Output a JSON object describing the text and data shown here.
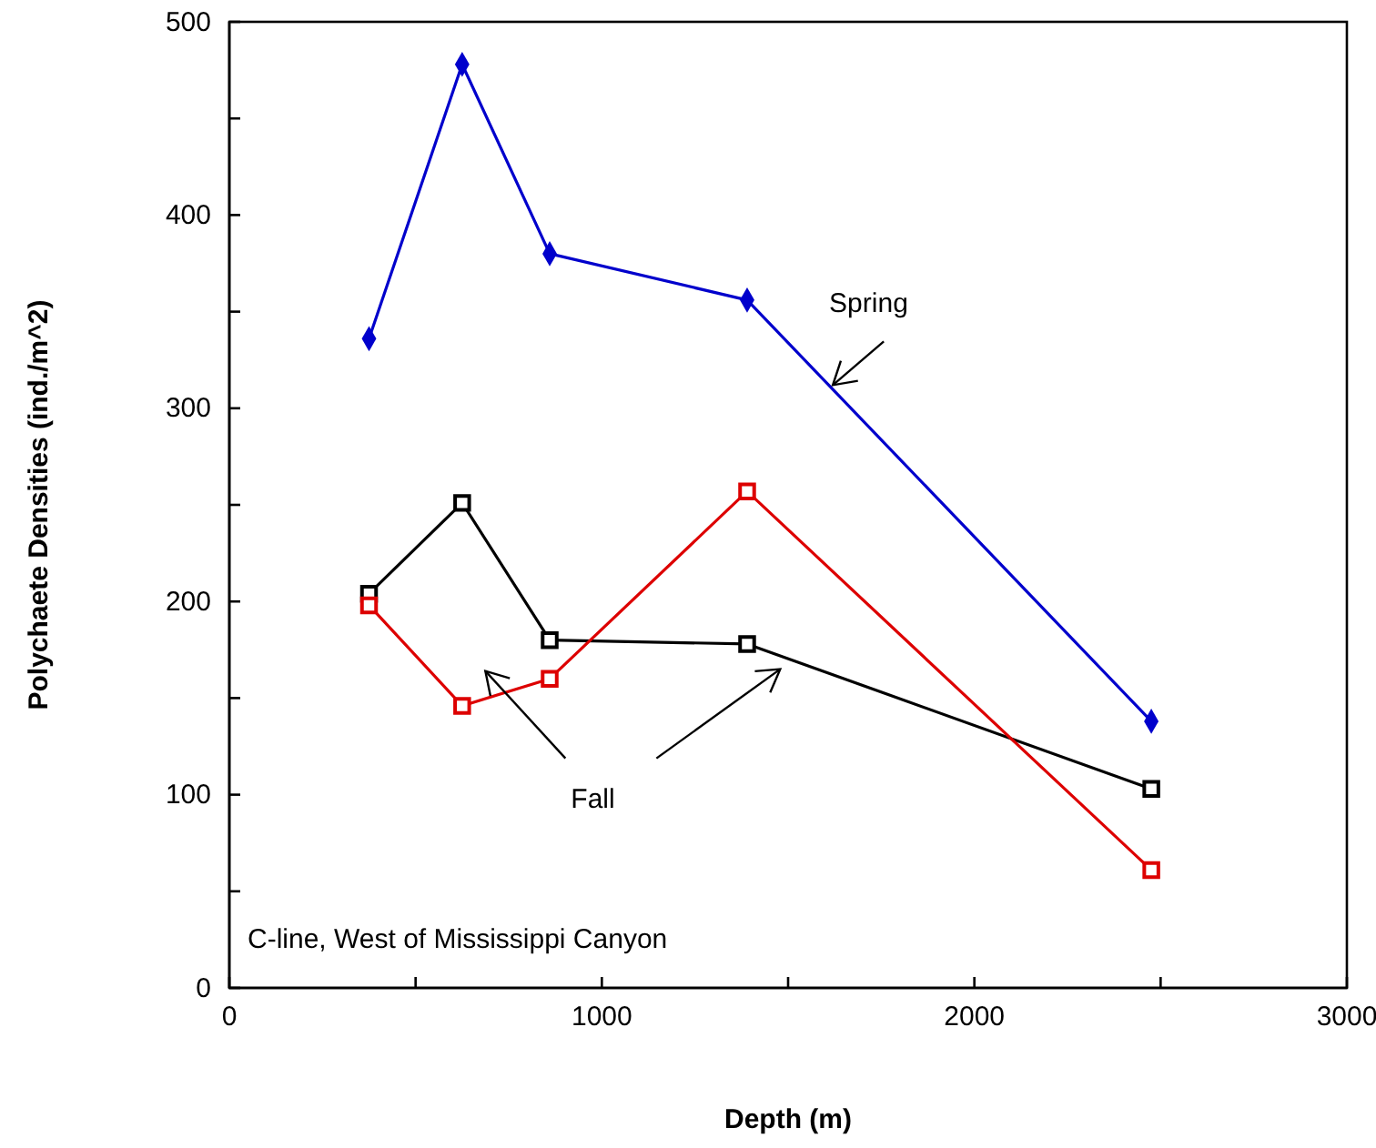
{
  "chart_data": {
    "type": "line",
    "xlabel": "Depth (m)",
    "ylabel": "Polychaete Densities (ind./m^2)",
    "xlim": [
      0,
      3000
    ],
    "ylim": [
      0,
      500
    ],
    "xticks": [
      0,
      {
        "value": 500,
        "label": null
      },
      1000,
      {
        "value": 1500,
        "label": null
      },
      2000,
      {
        "value": 2500,
        "label": null
      },
      3000
    ],
    "yticks": [
      0,
      {
        "value": 50,
        "label": null
      },
      100,
      {
        "value": 150,
        "label": null
      },
      200,
      {
        "value": 250,
        "label": null
      },
      300,
      {
        "value": 350,
        "label": null
      },
      400,
      {
        "value": 450,
        "label": null
      },
      500
    ],
    "x": [
      375,
      625,
      860,
      1390,
      2475
    ],
    "series": [
      {
        "color": "#0000cc",
        "marker": "diamond",
        "values": [
          336,
          478,
          380,
          356,
          138
        ]
      },
      {
        "color": "#000000",
        "marker": "square",
        "values": [
          204,
          251,
          180,
          178,
          103
        ]
      },
      {
        "color": "#dd0000",
        "marker": "square",
        "values": [
          198,
          146,
          160,
          257,
          61
        ]
      }
    ],
    "annotations": [
      {
        "text": "Spring",
        "x": 1620,
        "y": 312
      },
      "Fall",
      "C-line, West of Mississippi Canyon"
    ],
    "grid": false
  }
}
